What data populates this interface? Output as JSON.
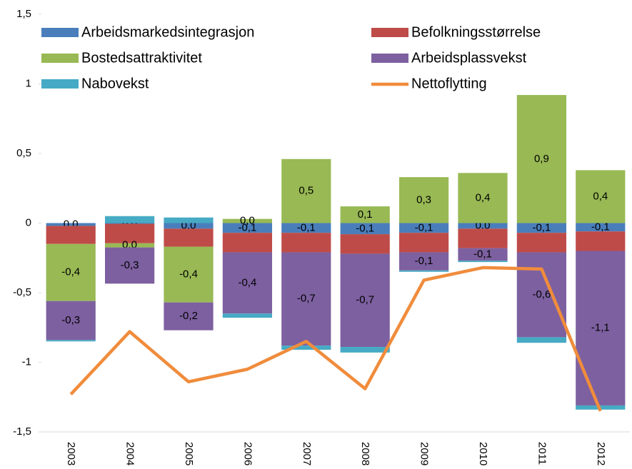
{
  "chart_data": {
    "type": "bar",
    "stacked": true,
    "categories": [
      "2003",
      "2004",
      "2005",
      "2006",
      "2007",
      "2008",
      "2009",
      "2010",
      "2011",
      "2012"
    ],
    "series": [
      {
        "name": "Arbeidsmarkedsintegrasjon",
        "color": "#4a7ebb",
        "values": [
          -0.02,
          -0.005,
          -0.04,
          -0.07,
          -0.07,
          -0.08,
          -0.07,
          -0.04,
          -0.07,
          -0.06
        ],
        "value_labels": [
          "0,0",
          "0,0",
          "0,0",
          "-0,1",
          "-0,1",
          "-0,1",
          "-0,1",
          "0,0",
          "-0,1",
          "-0,1"
        ]
      },
      {
        "name": "Befolkningsstørrelse",
        "color": "#be4b48",
        "values": [
          -0.13,
          -0.14,
          -0.13,
          -0.14,
          -0.14,
          -0.14,
          -0.14,
          -0.14,
          -0.14,
          -0.14
        ]
      },
      {
        "name": "Bostedsattraktivitet",
        "color": "#98b954",
        "values": [
          -0.41,
          -0.03,
          -0.4,
          0.03,
          0.46,
          0.12,
          0.33,
          0.36,
          0.92,
          0.38
        ],
        "value_labels": [
          "-0,4",
          "0,0",
          "-0,4",
          "0,0",
          "0,5",
          "0,1",
          "0,3",
          "0,4",
          "0,9",
          "0,4"
        ]
      },
      {
        "name": "Arbeidsplassvekst",
        "color": "#7d60a0",
        "values": [
          -0.28,
          -0.26,
          -0.2,
          -0.44,
          -0.67,
          -0.67,
          -0.13,
          -0.09,
          -0.61,
          -1.11
        ],
        "value_labels": [
          "-0,3",
          "-0,3",
          "-0,2",
          "-0,4",
          "-0,7",
          "-0,7",
          "-0,1",
          "-0,1",
          "-0,6",
          "-1,1"
        ]
      },
      {
        "name": "Nabovekst",
        "color": "#46aac5",
        "values": [
          -0.01,
          0.05,
          0.04,
          -0.03,
          -0.03,
          -0.04,
          -0.01,
          -0.01,
          -0.04,
          -0.03
        ]
      },
      {
        "name": "Nettoflytting",
        "type": "line",
        "color": "#f08c3c",
        "values": [
          -1.23,
          -0.78,
          -1.14,
          -1.05,
          -0.85,
          -1.19,
          -0.41,
          -0.32,
          -0.33,
          -1.35
        ]
      }
    ],
    "ylim": [
      -1.5,
      1.5
    ],
    "yticks": [
      {
        "value": -1.5,
        "label": "-1,5"
      },
      -1,
      {
        "value": -0.5,
        "label": "-0,5"
      },
      0,
      {
        "value": 0.5,
        "label": "0,5"
      },
      1,
      {
        "value": 1.5,
        "label": "1,5"
      }
    ],
    "legend": "top"
  }
}
